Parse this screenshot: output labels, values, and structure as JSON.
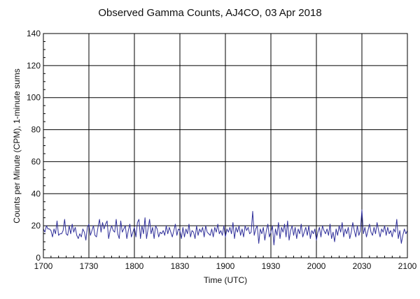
{
  "chart_data": {
    "type": "line",
    "title": "Observed Gamma Counts, AJ4CO, 03 Apr 2018",
    "xlabel": "Time (UTC)",
    "ylabel": "Counts per Minute (CPM), 1-minute sums",
    "xlim": [
      0,
      240
    ],
    "ylim": [
      0,
      140
    ],
    "x_ticks": [
      {
        "pos": 0,
        "label": "1700"
      },
      {
        "pos": 30,
        "label": "1730"
      },
      {
        "pos": 60,
        "label": "1800"
      },
      {
        "pos": 90,
        "label": "1830"
      },
      {
        "pos": 120,
        "label": "1900"
      },
      {
        "pos": 150,
        "label": "1930"
      },
      {
        "pos": 180,
        "label": "2000"
      },
      {
        "pos": 210,
        "label": "2030"
      },
      {
        "pos": 240,
        "label": "2100"
      }
    ],
    "y_ticks": [
      0,
      20,
      40,
      60,
      80,
      100,
      120,
      140
    ],
    "grid": true,
    "line_color": "#2f2f9a",
    "series": [
      {
        "name": "",
        "values": [
          18,
          16,
          20,
          18,
          18,
          17,
          13,
          18,
          15,
          23,
          14,
          15,
          15,
          17,
          24,
          15,
          14,
          20,
          15,
          21,
          16,
          19,
          14,
          12,
          15,
          13,
          18,
          16,
          11,
          19,
          21,
          14,
          17,
          20,
          14,
          13,
          19,
          24,
          16,
          22,
          18,
          21,
          23,
          12,
          17,
          20,
          17,
          16,
          24,
          15,
          12,
          23,
          16,
          18,
          20,
          12,
          17,
          21,
          13,
          16,
          19,
          13,
          22,
          24,
          12,
          20,
          15,
          25,
          12,
          18,
          24,
          15,
          19,
          12,
          20,
          18,
          13,
          16,
          15,
          17,
          14,
          20,
          15,
          19,
          16,
          13,
          17,
          21,
          14,
          18,
          17,
          12,
          19,
          13,
          18,
          15,
          21,
          13,
          17,
          16,
          12,
          20,
          14,
          18,
          16,
          19,
          13,
          20,
          16,
          15,
          14,
          18,
          13,
          19,
          16,
          21,
          15,
          17,
          14,
          20,
          13,
          18,
          16,
          19,
          15,
          22,
          12,
          19,
          16,
          20,
          14,
          18,
          13,
          20,
          17,
          19,
          15,
          16,
          29,
          14,
          18,
          20,
          9,
          18,
          15,
          19,
          11,
          17,
          21,
          13,
          16,
          20,
          8,
          18,
          14,
          22,
          12,
          19,
          16,
          21,
          13,
          23,
          11,
          17,
          20,
          14,
          19,
          12,
          18,
          15,
          21,
          13,
          16,
          19,
          14,
          20,
          12,
          17,
          15,
          18,
          11,
          16,
          19,
          13,
          20,
          17,
          15,
          18,
          14,
          21,
          12,
          16,
          10,
          18,
          14,
          20,
          16,
          22,
          13,
          18,
          15,
          19,
          12,
          16,
          22,
          17,
          13,
          20,
          14,
          17,
          30,
          15,
          19,
          13,
          17,
          21,
          16,
          14,
          19,
          15,
          22,
          17,
          13,
          18,
          16,
          20,
          14,
          19,
          15,
          17,
          13,
          18,
          16,
          24,
          12,
          17,
          9,
          14,
          18,
          15,
          17
        ]
      }
    ]
  }
}
